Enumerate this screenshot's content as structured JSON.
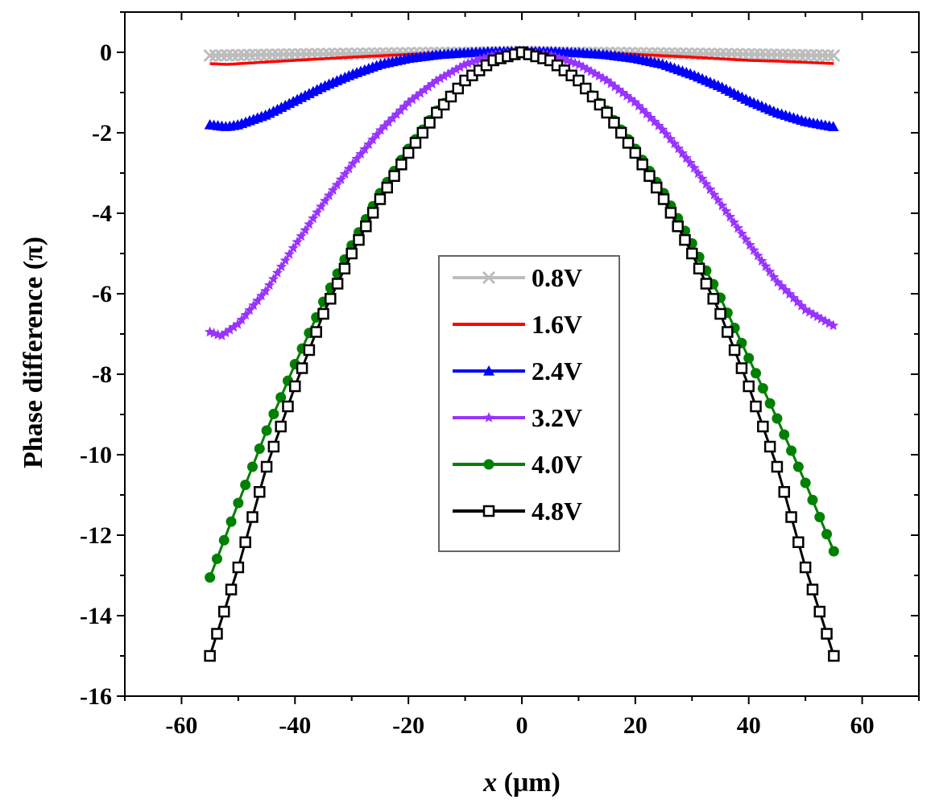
{
  "chart_data": {
    "type": "line",
    "title": "",
    "xlabel": {
      "var": "x",
      "unit": " (μm)"
    },
    "ylabel": "Phase difference (π)",
    "xlim": [
      -70,
      70
    ],
    "ylim": [
      -16,
      1
    ],
    "xticks": [
      -60,
      -40,
      -20,
      0,
      20,
      40,
      60
    ],
    "xtick_labels": [
      "-60",
      "-40",
      "-20",
      "0",
      "20",
      "40",
      "60"
    ],
    "yticks": [
      0,
      -2,
      -4,
      -6,
      -8,
      -10,
      -12,
      -14,
      -16
    ],
    "ytick_labels": [
      "0",
      "-2",
      "-4",
      "-6",
      "-8",
      "-10",
      "-12",
      "-14",
      "-16"
    ],
    "legend_position": "center",
    "series": [
      {
        "name": "0.8V",
        "color": "#bdbdbd",
        "marker": "x",
        "x": [
          -55,
          -40,
          -20,
          0,
          20,
          40,
          55
        ],
        "y": [
          -0.08,
          -0.05,
          -0.02,
          0,
          -0.02,
          -0.05,
          -0.08
        ]
      },
      {
        "name": "1.6V",
        "color": "#ff0000",
        "marker": "none",
        "x": [
          -55,
          -52,
          -45,
          -40,
          -30,
          -20,
          -10,
          0,
          10,
          20,
          30,
          40,
          45,
          52,
          55
        ],
        "y": [
          -0.28,
          -0.3,
          -0.24,
          -0.2,
          -0.12,
          -0.05,
          -0.01,
          0,
          -0.01,
          -0.05,
          -0.12,
          -0.2,
          -0.22,
          -0.26,
          -0.28
        ]
      },
      {
        "name": "2.4V",
        "color": "#0000ff",
        "marker": "triangle",
        "x": [
          -55,
          -52,
          -50,
          -45,
          -40,
          -35,
          -30,
          -25,
          -20,
          -15,
          -10,
          -5,
          0,
          5,
          10,
          15,
          20,
          25,
          30,
          35,
          40,
          45,
          50,
          53,
          55
        ],
        "y": [
          -1.8,
          -1.85,
          -1.8,
          -1.55,
          -1.2,
          -0.85,
          -0.55,
          -0.3,
          -0.15,
          -0.06,
          -0.01,
          0.02,
          0.03,
          0.02,
          -0.01,
          -0.06,
          -0.15,
          -0.3,
          -0.55,
          -0.85,
          -1.2,
          -1.5,
          -1.72,
          -1.8,
          -1.85
        ]
      },
      {
        "name": "3.2V",
        "color": "#9933ff",
        "marker": "star",
        "x": [
          -55,
          -53,
          -50,
          -45,
          -40,
          -35,
          -30,
          -25,
          -20,
          -15,
          -10,
          -5,
          0,
          5,
          10,
          15,
          20,
          25,
          30,
          35,
          40,
          45,
          50,
          55
        ],
        "y": [
          -6.95,
          -7.05,
          -6.75,
          -5.9,
          -4.8,
          -3.75,
          -2.8,
          -1.95,
          -1.25,
          -0.7,
          -0.3,
          -0.07,
          0,
          -0.07,
          -0.3,
          -0.7,
          -1.25,
          -1.95,
          -2.8,
          -3.75,
          -4.75,
          -5.7,
          -6.4,
          -6.8
        ]
      },
      {
        "name": "4.0V",
        "color": "#008000",
        "marker": "circle",
        "x": [
          -55,
          -50,
          -45,
          -40,
          -35,
          -30,
          -25,
          -20,
          -15,
          -10,
          -5,
          0,
          5,
          10,
          15,
          20,
          25,
          30,
          35,
          40,
          45,
          50,
          55
        ],
        "y": [
          -13.05,
          -11.2,
          -9.4,
          -7.75,
          -6.2,
          -4.8,
          -3.5,
          -2.4,
          -1.45,
          -0.7,
          -0.2,
          0,
          -0.2,
          -0.7,
          -1.45,
          -2.4,
          -3.5,
          -4.75,
          -6.1,
          -7.6,
          -9.1,
          -10.7,
          -12.4
        ]
      },
      {
        "name": "4.8V",
        "color": "#000000",
        "marker": "square",
        "x": [
          -55,
          -50,
          -45,
          -40,
          -35,
          -30,
          -25,
          -20,
          -15,
          -10,
          -5,
          0,
          5,
          10,
          15,
          20,
          25,
          30,
          35,
          40,
          45,
          50,
          55
        ],
        "y": [
          -15.0,
          -12.8,
          -10.3,
          -8.3,
          -6.5,
          -5.0,
          -3.65,
          -2.5,
          -1.5,
          -0.7,
          -0.2,
          0,
          -0.2,
          -0.7,
          -1.5,
          -2.5,
          -3.65,
          -5.0,
          -6.5,
          -8.3,
          -10.3,
          -12.8,
          -15.0
        ]
      }
    ]
  }
}
